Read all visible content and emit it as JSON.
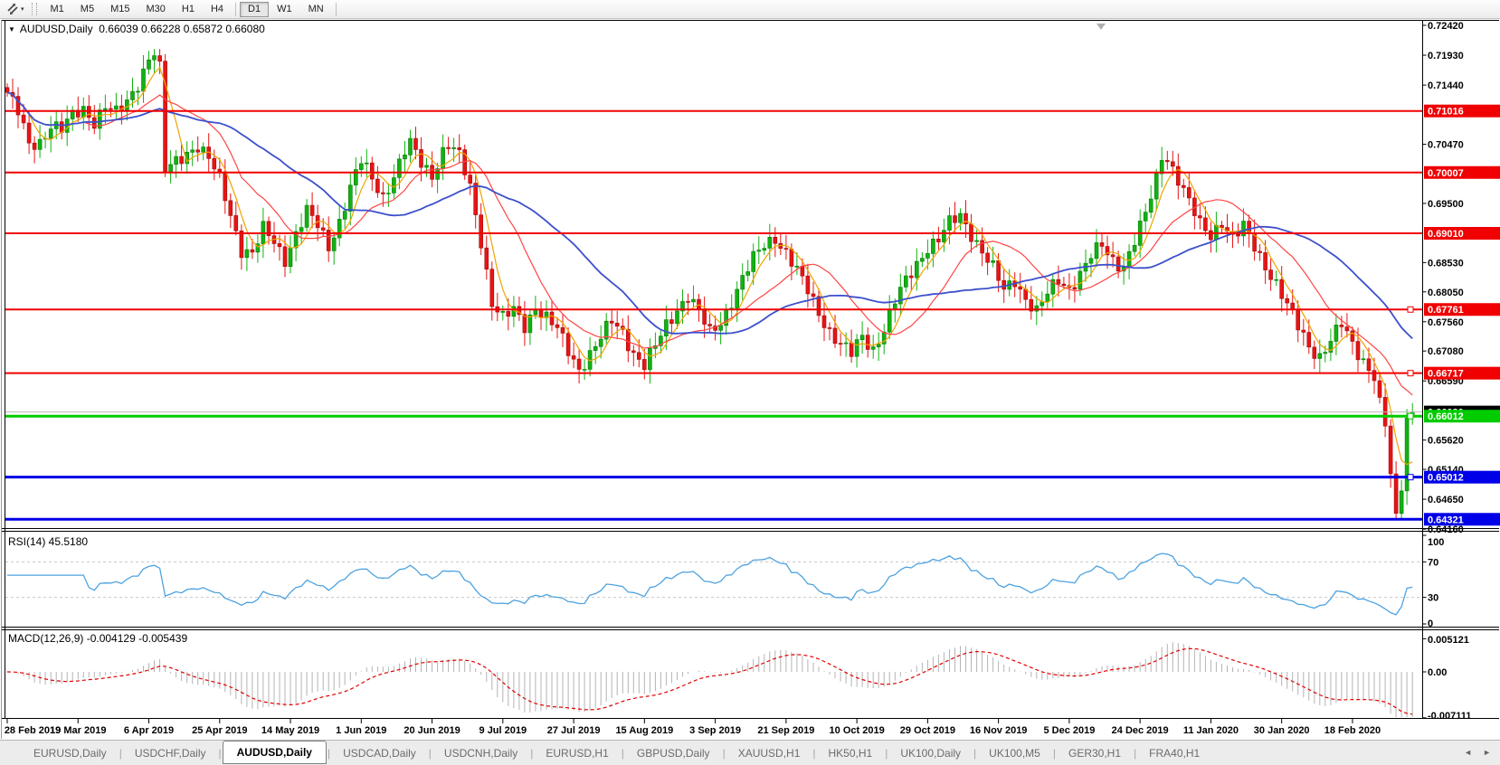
{
  "toolbar": {
    "chart_tools_icon": "chart-tools-icon",
    "dropdown_caret": "▾",
    "timeframe_groups": [
      [
        "M1",
        "M5",
        "M15",
        "M30",
        "H1",
        "H4"
      ],
      [
        "D1",
        "W1",
        "MN"
      ]
    ],
    "active_timeframe": "D1"
  },
  "chart_header": {
    "collapse_glyph": "▼",
    "title": "AUDUSD,Daily",
    "ohlc": "0.66039 0.66228 0.65872 0.66080"
  },
  "main_chart": {
    "price_ticks": [
      "0.72420",
      "0.71930",
      "0.71440",
      "0.70470",
      "0.69500",
      "0.68530",
      "0.68050",
      "0.67560",
      "0.67080",
      "0.66590",
      "0.65620",
      "0.65140",
      "0.64650",
      "0.64160"
    ],
    "lines": [
      {
        "label": "0.71016",
        "value": 0.71016,
        "color": "#f00000",
        "width": 2,
        "handle": false
      },
      {
        "label": "0.70007",
        "value": 0.70007,
        "color": "#f00000",
        "width": 2,
        "handle": false
      },
      {
        "label": "0.69010",
        "value": 0.6901,
        "color": "#f00000",
        "width": 2,
        "handle": false
      },
      {
        "label": "0.67761",
        "value": 0.67761,
        "color": "#f00000",
        "width": 2,
        "handle": true
      },
      {
        "label": "0.66717",
        "value": 0.66717,
        "color": "#f00000",
        "width": 2,
        "handle": true
      },
      {
        "label": "0.66012",
        "value": 0.66012,
        "color": "#00cc00",
        "width": 3,
        "handle": true
      },
      {
        "label": "0.65012",
        "value": 0.65012,
        "color": "#0000e8",
        "width": 3,
        "handle": true
      },
      {
        "label": "0.64321",
        "value": 0.64321,
        "color": "#0000e8",
        "width": 3,
        "handle": false
      }
    ],
    "current_price": {
      "label": "0.66080",
      "value": 0.6608,
      "line_color": "#b8b8b8",
      "badge_color": "#000000"
    }
  },
  "rsi_panel": {
    "label": "RSI(14) 45.5180",
    "scale_labels": [
      "100",
      "70",
      "30",
      "0"
    ],
    "scale_values": [
      100,
      70,
      30,
      0
    ],
    "level_lines": [
      70,
      30
    ],
    "line_color": "#4da2e0",
    "level_color": "#c8c8c8"
  },
  "macd_panel": {
    "label": "MACD(12,26,9) -0.004129 -0.005439",
    "scale_labels": [
      "0.005121",
      "0.00",
      "-0.007111"
    ],
    "scale_values": [
      0.005121,
      0.0,
      -0.007111
    ],
    "hist_color": "#b4b4b4",
    "signal_color": "#e00000"
  },
  "x_axis": {
    "dates": [
      "28 Feb 2019",
      "19 Mar 2019",
      "6 Apr 2019",
      "25 Apr 2019",
      "14 May 2019",
      "1 Jun 2019",
      "20 Jun 2019",
      "9 Jul 2019",
      "27 Jul 2019",
      "15 Aug 2019",
      "3 Sep 2019",
      "21 Sep 2019",
      "10 Oct 2019",
      "29 Oct 2019",
      "16 Nov 2019",
      "5 Dec 2019",
      "24 Dec 2019",
      "11 Jan 2020",
      "30 Jan 2020",
      "18 Feb 2020"
    ]
  },
  "tabs": {
    "items": [
      "EURUSD,Daily",
      "USDCHF,Daily",
      "AUDUSD,Daily",
      "USDCAD,Daily",
      "USDCNH,Daily",
      "EURUSD,H1",
      "GBPUSD,Daily",
      "XAUUSD,H1",
      "HK50,H1",
      "UK100,Daily",
      "UK100,M5",
      "GER30,H1",
      "FRA40,H1"
    ],
    "active": "AUDUSD,Daily",
    "scroll_left_glyph": "◄",
    "scroll_right_glyph": "►"
  },
  "chart_data": {
    "type": "candlestick",
    "symbol": "AUDUSD",
    "timeframe": "Daily",
    "last_candle": {
      "open": 0.66039,
      "high": 0.66228,
      "low": 0.65872,
      "close": 0.6608
    },
    "price_axis": {
      "top": 0.7242,
      "bottom": 0.6416
    },
    "support_resistance": [
      0.71016,
      0.70007,
      0.6901,
      0.67761,
      0.66717,
      0.66012,
      0.65012,
      0.64321
    ],
    "indicators": [
      {
        "name": "RSI",
        "period": 14,
        "value": 45.518,
        "levels": [
          70,
          30
        ]
      },
      {
        "name": "MACD",
        "fast": 12,
        "slow": 26,
        "signal_period": 9,
        "macd": -0.004129,
        "signal": -0.005439,
        "scale_top": 0.005121,
        "scale_bottom": -0.007111
      }
    ],
    "moving_averages": [
      {
        "name": "fast",
        "period": 5,
        "color": "#f0a400"
      },
      {
        "name": "medium",
        "period": 15,
        "color": "#ff4545"
      },
      {
        "name": "slow",
        "period": 34,
        "color": "#3c50cc"
      }
    ],
    "candle_up_color": "#12b212",
    "candle_down_color": "#e81414",
    "close_waypoints": [
      [
        0,
        0.7132
      ],
      [
        2,
        0.7098
      ],
      [
        4,
        0.7045
      ],
      [
        6,
        0.7052
      ],
      [
        8,
        0.708
      ],
      [
        10,
        0.707
      ],
      [
        12,
        0.7092
      ],
      [
        14,
        0.7105
      ],
      [
        16,
        0.7086
      ],
      [
        18,
        0.711
      ],
      [
        20,
        0.7096
      ],
      [
        22,
        0.7115
      ],
      [
        24,
        0.7148
      ],
      [
        26,
        0.719
      ],
      [
        27,
        0.7198
      ],
      [
        28,
        0.717
      ],
      [
        29,
        0.7002
      ],
      [
        31,
        0.7018
      ],
      [
        33,
        0.7035
      ],
      [
        35,
        0.7046
      ],
      [
        37,
        0.7022
      ],
      [
        39,
        0.6988
      ],
      [
        41,
        0.6932
      ],
      [
        43,
        0.6876
      ],
      [
        45,
        0.6868
      ],
      [
        47,
        0.6906
      ],
      [
        49,
        0.6886
      ],
      [
        51,
        0.686
      ],
      [
        53,
        0.6902
      ],
      [
        55,
        0.6936
      ],
      [
        57,
        0.6912
      ],
      [
        59,
        0.688
      ],
      [
        61,
        0.6922
      ],
      [
        63,
        0.6976
      ],
      [
        65,
        0.7018
      ],
      [
        67,
        0.699
      ],
      [
        69,
        0.6962
      ],
      [
        71,
        0.6996
      ],
      [
        73,
        0.7034
      ],
      [
        74,
        0.7046
      ],
      [
        76,
        0.7016
      ],
      [
        78,
        0.6998
      ],
      [
        80,
        0.7036
      ],
      [
        81,
        0.7046
      ],
      [
        83,
        0.7026
      ],
      [
        85,
        0.6976
      ],
      [
        87,
        0.689
      ],
      [
        89,
        0.6788
      ],
      [
        91,
        0.676
      ],
      [
        93,
        0.6774
      ],
      [
        95,
        0.675
      ],
      [
        97,
        0.6782
      ],
      [
        99,
        0.6762
      ],
      [
        101,
        0.6742
      ],
      [
        103,
        0.6708
      ],
      [
        105,
        0.668
      ],
      [
        107,
        0.6704
      ],
      [
        109,
        0.6728
      ],
      [
        111,
        0.6756
      ],
      [
        113,
        0.674
      ],
      [
        115,
        0.6706
      ],
      [
        117,
        0.6684
      ],
      [
        119,
        0.6714
      ],
      [
        121,
        0.675
      ],
      [
        123,
        0.6778
      ],
      [
        125,
        0.68
      ],
      [
        127,
        0.677
      ],
      [
        129,
        0.6736
      ],
      [
        131,
        0.6756
      ],
      [
        133,
        0.6792
      ],
      [
        135,
        0.6826
      ],
      [
        137,
        0.6858
      ],
      [
        139,
        0.6882
      ],
      [
        141,
        0.6896
      ],
      [
        143,
        0.687
      ],
      [
        145,
        0.6838
      ],
      [
        147,
        0.6806
      ],
      [
        149,
        0.6772
      ],
      [
        151,
        0.6742
      ],
      [
        153,
        0.6718
      ],
      [
        155,
        0.6702
      ],
      [
        157,
        0.6732
      ],
      [
        159,
        0.6712
      ],
      [
        161,
        0.6745
      ],
      [
        163,
        0.6788
      ],
      [
        165,
        0.6822
      ],
      [
        167,
        0.6852
      ],
      [
        169,
        0.688
      ],
      [
        171,
        0.689
      ],
      [
        173,
        0.6916
      ],
      [
        175,
        0.693
      ],
      [
        177,
        0.6902
      ],
      [
        179,
        0.6872
      ],
      [
        181,
        0.6842
      ],
      [
        183,
        0.6806
      ],
      [
        185,
        0.6826
      ],
      [
        187,
        0.6795
      ],
      [
        189,
        0.6772
      ],
      [
        191,
        0.68
      ],
      [
        193,
        0.6825
      ],
      [
        195,
        0.6812
      ],
      [
        197,
        0.6835
      ],
      [
        199,
        0.6862
      ],
      [
        201,
        0.688
      ],
      [
        203,
        0.6858
      ],
      [
        205,
        0.6848
      ],
      [
        207,
        0.6888
      ],
      [
        209,
        0.693
      ],
      [
        211,
        0.699
      ],
      [
        212,
        0.703
      ],
      [
        213,
        0.7026
      ],
      [
        215,
        0.699
      ],
      [
        217,
        0.695
      ],
      [
        219,
        0.6915
      ],
      [
        221,
        0.69
      ],
      [
        223,
        0.6922
      ],
      [
        225,
        0.689
      ],
      [
        227,
        0.691
      ],
      [
        229,
        0.688
      ],
      [
        231,
        0.685
      ],
      [
        233,
        0.6818
      ],
      [
        235,
        0.678
      ],
      [
        237,
        0.6748
      ],
      [
        239,
        0.6718
      ],
      [
        241,
        0.67
      ],
      [
        243,
        0.6724
      ],
      [
        245,
        0.675
      ],
      [
        247,
        0.672
      ],
      [
        249,
        0.6694
      ],
      [
        251,
        0.6662
      ],
      [
        252,
        0.6628
      ],
      [
        253,
        0.6585
      ],
      [
        254,
        0.6505
      ],
      [
        255,
        0.6438
      ],
      [
        256,
        0.6482
      ],
      [
        257,
        0.6598
      ],
      [
        258,
        0.6608
      ]
    ]
  }
}
